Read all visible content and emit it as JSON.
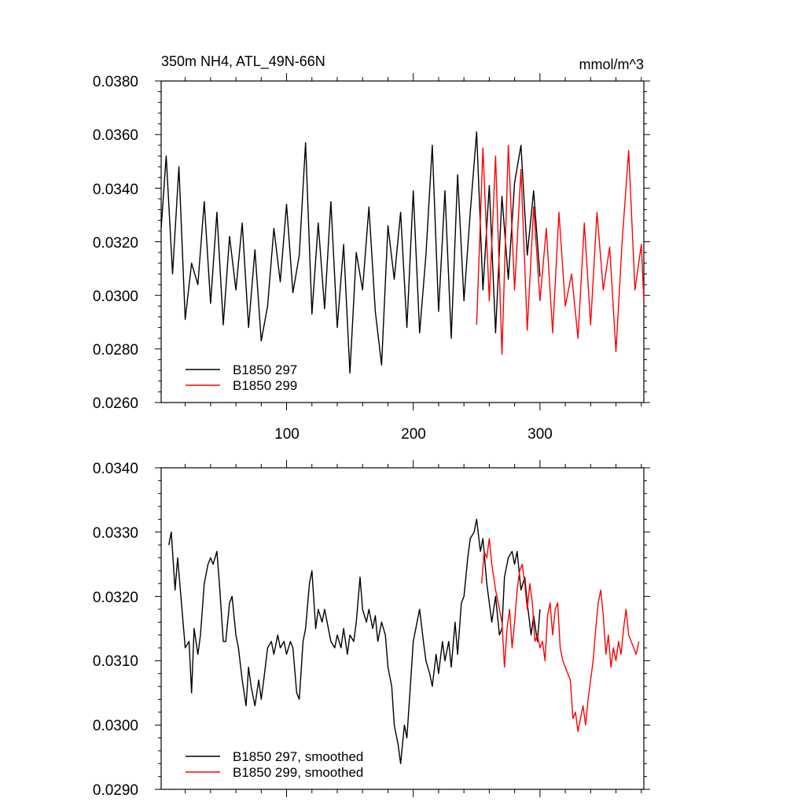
{
  "chart_data": [
    {
      "type": "line",
      "title": "350m NH4, ATL_49N-66N",
      "units": "mmol/m^3",
      "xlim": [
        1,
        382
      ],
      "ylim": [
        0.026,
        0.038
      ],
      "x_major_ticks": [
        100,
        200,
        300
      ],
      "x_tick_labels": [
        "100",
        "200",
        "300"
      ],
      "y_major_ticks": [
        0.026,
        0.028,
        0.03,
        0.032,
        0.034,
        0.036,
        0.038
      ],
      "y_tick_labels": [
        "0.0260",
        "0.0280",
        "0.0300",
        "0.0320",
        "0.0340",
        "0.0360",
        "0.0380"
      ],
      "grid": false,
      "legend": "bottom-left",
      "series": [
        {
          "name": "B1850 297",
          "color": "#000000",
          "x": [
            1,
            5,
            10,
            15,
            20,
            25,
            30,
            35,
            40,
            45,
            50,
            55,
            60,
            65,
            70,
            75,
            80,
            85,
            90,
            95,
            100,
            105,
            110,
            115,
            120,
            125,
            130,
            135,
            140,
            145,
            150,
            155,
            160,
            165,
            170,
            175,
            180,
            185,
            190,
            195,
            200,
            205,
            210,
            215,
            220,
            225,
            230,
            235,
            240,
            245,
            250,
            255,
            260,
            265,
            270,
            275,
            280,
            285,
            290,
            295,
            300
          ],
          "values": [
            0.0325,
            0.0352,
            0.0308,
            0.0348,
            0.0291,
            0.0312,
            0.0304,
            0.0335,
            0.0297,
            0.0331,
            0.0289,
            0.0322,
            0.0302,
            0.0327,
            0.0288,
            0.0317,
            0.0283,
            0.0296,
            0.0325,
            0.0305,
            0.0334,
            0.0301,
            0.0315,
            0.0357,
            0.0293,
            0.0327,
            0.0295,
            0.0335,
            0.0288,
            0.0319,
            0.0271,
            0.0316,
            0.0302,
            0.0333,
            0.0294,
            0.0274,
            0.0326,
            0.0306,
            0.0331,
            0.0288,
            0.0339,
            0.0286,
            0.0315,
            0.0356,
            0.0294,
            0.0339,
            0.0284,
            0.0345,
            0.0298,
            0.0331,
            0.0361,
            0.0302,
            0.0341,
            0.0286,
            0.0337,
            0.0306,
            0.0342,
            0.0356,
            0.0315,
            0.0339,
            0.0307
          ]
        },
        {
          "name": "B1850 299",
          "color": "#ff0000",
          "x": [
            250,
            255,
            260,
            265,
            270,
            275,
            280,
            285,
            290,
            295,
            300,
            305,
            310,
            315,
            320,
            325,
            330,
            335,
            340,
            345,
            350,
            355,
            360,
            365,
            370,
            375,
            380,
            382
          ],
          "values": [
            0.0289,
            0.0355,
            0.0298,
            0.0352,
            0.0278,
            0.0356,
            0.0302,
            0.0347,
            0.0287,
            0.0333,
            0.0298,
            0.0325,
            0.0286,
            0.0331,
            0.0296,
            0.0308,
            0.0284,
            0.0327,
            0.0289,
            0.0331,
            0.0302,
            0.0318,
            0.0279,
            0.0321,
            0.0354,
            0.0302,
            0.0319,
            0.0298
          ]
        }
      ]
    },
    {
      "type": "line",
      "xlim": [
        1,
        382
      ],
      "ylim": [
        0.029,
        0.034
      ],
      "x_major_ticks": [
        100,
        200,
        300
      ],
      "y_major_ticks": [
        0.029,
        0.03,
        0.031,
        0.032,
        0.033,
        0.034
      ],
      "y_tick_labels": [
        "0.0290",
        "0.0300",
        "0.0310",
        "0.0320",
        "0.0330",
        "0.0340"
      ],
      "grid": false,
      "legend": "bottom-left",
      "series": [
        {
          "name": "B1850 297, smoothed",
          "color": "#000000",
          "x": [
            7,
            9,
            12,
            14,
            17,
            20,
            23,
            25,
            27,
            30,
            32,
            35,
            38,
            40,
            42,
            45,
            47,
            50,
            52,
            55,
            57,
            60,
            62,
            65,
            68,
            70,
            72,
            75,
            78,
            80,
            82,
            85,
            88,
            90,
            93,
            95,
            98,
            100,
            103,
            105,
            108,
            110,
            113,
            115,
            118,
            120,
            123,
            125,
            128,
            130,
            133,
            135,
            138,
            140,
            143,
            145,
            148,
            150,
            153,
            155,
            158,
            160,
            163,
            165,
            168,
            170,
            172,
            175,
            178,
            180,
            183,
            185,
            188,
            190,
            193,
            195,
            198,
            200,
            203,
            205,
            208,
            210,
            213,
            215,
            218,
            220,
            223,
            225,
            228,
            230,
            233,
            235,
            238,
            240,
            243,
            245,
            248,
            250,
            253,
            255,
            258,
            260,
            262,
            265,
            268,
            270,
            272,
            275,
            278,
            280,
            282,
            285,
            288,
            290,
            293,
            295,
            298,
            300
          ],
          "values": [
            0.0328,
            0.033,
            0.0321,
            0.0326,
            0.0319,
            0.0312,
            0.0313,
            0.0305,
            0.0315,
            0.0311,
            0.0314,
            0.0322,
            0.0325,
            0.0326,
            0.0325,
            0.0327,
            0.0322,
            0.0313,
            0.0313,
            0.0319,
            0.032,
            0.0314,
            0.0312,
            0.0307,
            0.0303,
            0.0309,
            0.0306,
            0.0303,
            0.0307,
            0.0304,
            0.0307,
            0.0312,
            0.0313,
            0.0311,
            0.0314,
            0.0312,
            0.0313,
            0.0311,
            0.0313,
            0.0312,
            0.0305,
            0.0304,
            0.0313,
            0.0315,
            0.0322,
            0.0324,
            0.0315,
            0.0318,
            0.0316,
            0.0318,
            0.0315,
            0.0313,
            0.0312,
            0.0314,
            0.0312,
            0.0315,
            0.0311,
            0.0314,
            0.0313,
            0.0316,
            0.0323,
            0.0318,
            0.0316,
            0.0318,
            0.0315,
            0.0317,
            0.0313,
            0.0316,
            0.0314,
            0.0309,
            0.0306,
            0.03,
            0.0297,
            0.0294,
            0.03,
            0.0298,
            0.0307,
            0.0313,
            0.0316,
            0.0318,
            0.0313,
            0.031,
            0.0308,
            0.0306,
            0.0311,
            0.0308,
            0.0313,
            0.031,
            0.0313,
            0.0309,
            0.0316,
            0.0311,
            0.0319,
            0.032,
            0.0326,
            0.0329,
            0.033,
            0.0332,
            0.0327,
            0.0329,
            0.0322,
            0.0319,
            0.0316,
            0.032,
            0.0314,
            0.0315,
            0.0323,
            0.0326,
            0.0327,
            0.0325,
            0.0327,
            0.0321,
            0.0323,
            0.0319,
            0.0314,
            0.0317,
            0.0313,
            0.0318
          ]
        },
        {
          "name": "B1850 299, smoothed",
          "color": "#ff0000",
          "x": [
            254,
            256,
            258,
            260,
            262,
            265,
            268,
            270,
            272,
            274,
            276,
            278,
            280,
            282,
            284,
            286,
            288,
            290,
            292,
            294,
            296,
            298,
            300,
            302,
            304,
            306,
            308,
            310,
            312,
            314,
            316,
            318,
            320,
            322,
            324,
            326,
            328,
            330,
            332,
            334,
            336,
            338,
            340,
            342,
            344,
            346,
            348,
            350,
            352,
            354,
            356,
            358,
            360,
            362,
            364,
            366,
            368,
            370,
            372,
            374,
            376,
            378
          ],
          "values": [
            0.0322,
            0.0327,
            0.0326,
            0.0329,
            0.0325,
            0.0321,
            0.0318,
            0.0316,
            0.0309,
            0.0315,
            0.0318,
            0.0312,
            0.0316,
            0.0321,
            0.0324,
            0.0325,
            0.0322,
            0.0318,
            0.0322,
            0.0319,
            0.0313,
            0.0314,
            0.0312,
            0.0313,
            0.031,
            0.0317,
            0.0319,
            0.0314,
            0.0318,
            0.0319,
            0.0312,
            0.031,
            0.0309,
            0.0308,
            0.0307,
            0.0301,
            0.0302,
            0.0299,
            0.0301,
            0.0303,
            0.03,
            0.0304,
            0.0307,
            0.031,
            0.0315,
            0.0319,
            0.0321,
            0.0317,
            0.0311,
            0.0314,
            0.0309,
            0.0312,
            0.031,
            0.0313,
            0.0311,
            0.0315,
            0.0318,
            0.0314,
            0.0313,
            0.0312,
            0.0311,
            0.0313
          ]
        }
      ]
    }
  ]
}
